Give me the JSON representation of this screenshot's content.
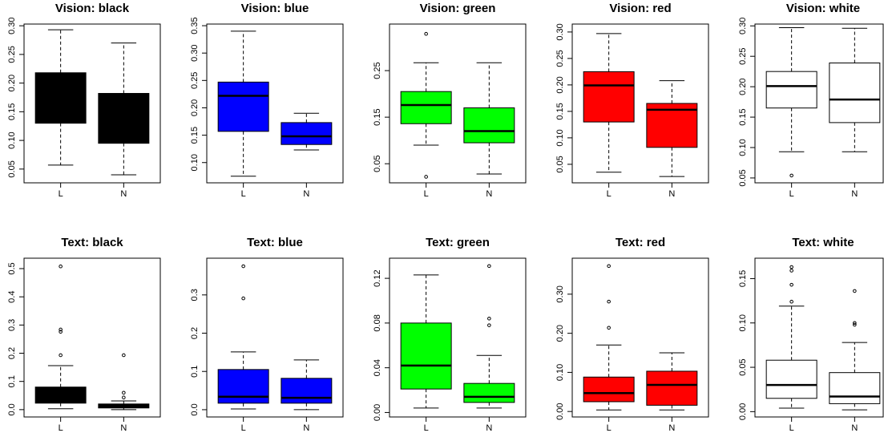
{
  "chart_data": [
    {
      "type": "box",
      "title": "Vision: black",
      "color": "#000000",
      "categories": [
        "L",
        "N"
      ],
      "ylim": [
        0.026,
        0.303
      ],
      "yticks": [
        0.05,
        {
          "value": 0.1,
          "label": "0.10"
        },
        0.15,
        {
          "value": 0.2,
          "label": "0.20"
        },
        0.25,
        {
          "value": 0.3,
          "label": "0.30"
        }
      ],
      "boxes": [
        {
          "min": 0.057,
          "q1": 0.13,
          "median": 0.17,
          "q3": 0.218,
          "max": 0.293,
          "outliers": []
        },
        {
          "min": 0.04,
          "q1": 0.095,
          "median": 0.14,
          "q3": 0.182,
          "max": 0.27,
          "outliers": []
        }
      ]
    },
    {
      "type": "box",
      "title": "Vision: blue",
      "color": "#0000ff",
      "categories": [
        "L",
        "N"
      ],
      "ylim": [
        0.063,
        0.353
      ],
      "yticks": [
        {
          "value": 0.1,
          "label": "0.10"
        },
        0.15,
        {
          "value": 0.2,
          "label": "0.20"
        },
        0.25,
        {
          "value": 0.3,
          "label": "0.30"
        },
        0.35
      ],
      "boxes": [
        {
          "min": 0.075,
          "q1": 0.157,
          "median": 0.222,
          "q3": 0.247,
          "max": 0.34,
          "outliers": []
        },
        {
          "min": 0.123,
          "q1": 0.133,
          "median": 0.148,
          "q3": 0.173,
          "max": 0.19,
          "outliers": []
        }
      ]
    },
    {
      "type": "box",
      "title": "Vision: green",
      "color": "#00ff00",
      "categories": [
        "L",
        "N"
      ],
      "ylim": [
        0.009,
        0.35
      ],
      "yticks": [
        0.05,
        0.15,
        0.25
      ],
      "boxes": [
        {
          "min": 0.09,
          "q1": 0.136,
          "median": 0.176,
          "q3": 0.205,
          "max": 0.267,
          "outliers": [
            0.329,
            0.022
          ]
        },
        {
          "min": 0.028,
          "q1": 0.095,
          "median": 0.12,
          "q3": 0.17,
          "max": 0.267,
          "outliers": []
        }
      ]
    },
    {
      "type": "box",
      "title": "Vision: red",
      "color": "#ff0000",
      "categories": [
        "L",
        "N"
      ],
      "ylim": [
        0.015,
        0.315
      ],
      "yticks": [
        0.05,
        {
          "value": 0.1,
          "label": "0.10"
        },
        0.15,
        {
          "value": 0.2,
          "label": "0.20"
        },
        0.25,
        {
          "value": 0.3,
          "label": "0.30"
        }
      ],
      "boxes": [
        {
          "min": 0.035,
          "q1": 0.13,
          "median": 0.199,
          "q3": 0.225,
          "max": 0.297,
          "outliers": []
        },
        {
          "min": 0.027,
          "q1": 0.082,
          "median": 0.153,
          "q3": 0.165,
          "max": 0.208,
          "outliers": []
        }
      ]
    },
    {
      "type": "box",
      "title": "Vision: white",
      "color": "#ffffff",
      "categories": [
        "L",
        "N"
      ],
      "ylim": [
        0.042,
        0.303
      ],
      "yticks": [
        0.05,
        {
          "value": 0.1,
          "label": "0.10"
        },
        0.15,
        {
          "value": 0.2,
          "label": "0.20"
        },
        0.25,
        {
          "value": 0.3,
          "label": "0.30"
        }
      ],
      "boxes": [
        {
          "min": 0.093,
          "q1": 0.165,
          "median": 0.201,
          "q3": 0.225,
          "max": 0.297,
          "outliers": [
            0.054
          ]
        },
        {
          "min": 0.093,
          "q1": 0.141,
          "median": 0.179,
          "q3": 0.239,
          "max": 0.296,
          "outliers": []
        }
      ]
    },
    {
      "type": "box",
      "title": "Text: black",
      "color": "#000000",
      "categories": [
        "L",
        "N"
      ],
      "ylim": [
        -0.026,
        0.537
      ],
      "yticks": [
        {
          "value": 0,
          "label": "0.0"
        },
        0.1,
        0.2,
        0.3,
        0.4,
        0.5
      ],
      "boxes": [
        {
          "min": 0.003,
          "q1": 0.023,
          "median": 0.04,
          "q3": 0.08,
          "max": 0.156,
          "outliers": [
            0.508,
            0.284,
            0.276,
            0.193
          ]
        },
        {
          "min": 0,
          "q1": 0.006,
          "median": 0.01,
          "q3": 0.02,
          "max": 0.031,
          "outliers": [
            0.193,
            0.06,
            0.043
          ]
        }
      ]
    },
    {
      "type": "box",
      "title": "Text: blue",
      "color": "#0000ff",
      "categories": [
        "L",
        "N"
      ],
      "ylim": [
        -0.019,
        0.396
      ],
      "yticks": [
        {
          "value": 0,
          "label": "0.0"
        },
        0.1,
        0.2,
        0.3
      ],
      "boxes": [
        {
          "min": 0.002,
          "q1": 0.017,
          "median": 0.034,
          "q3": 0.105,
          "max": 0.151,
          "outliers": [
            0.375,
            0.291
          ]
        },
        {
          "min": 0,
          "q1": 0.017,
          "median": 0.031,
          "q3": 0.082,
          "max": 0.13,
          "outliers": []
        }
      ]
    },
    {
      "type": "box",
      "title": "Text: green",
      "color": "#00ff00",
      "categories": [
        "L",
        "N"
      ],
      "ylim": [
        -0.004,
        0.138
      ],
      "yticks": [
        {
          "value": 0,
          "label": "0.00"
        },
        0.04,
        0.08,
        0.12
      ],
      "boxes": [
        {
          "min": 0.004,
          "q1": 0.021,
          "median": 0.042,
          "q3": 0.08,
          "max": 0.123,
          "outliers": []
        },
        {
          "min": 0.004,
          "q1": 0.009,
          "median": 0.014,
          "q3": 0.026,
          "max": 0.051,
          "outliers": [
            0.131,
            0.084,
            0.078
          ]
        }
      ]
    },
    {
      "type": "box",
      "title": "Text: red",
      "color": "#ff0000",
      "categories": [
        "L",
        "N"
      ],
      "ylim": [
        -0.014,
        0.392
      ],
      "yticks": [
        {
          "value": 0,
          "label": "0.00"
        },
        {
          "value": 0.1,
          "label": "0.10"
        },
        {
          "value": 0.2,
          "label": "0.20"
        },
        {
          "value": 0.3,
          "label": "0.30"
        }
      ],
      "boxes": [
        {
          "min": 0.004,
          "q1": 0.025,
          "median": 0.047,
          "q3": 0.088,
          "max": 0.17,
          "outliers": [
            0.372,
            0.281,
            0.214
          ]
        },
        {
          "min": 0.004,
          "q1": 0.016,
          "median": 0.068,
          "q3": 0.103,
          "max": 0.15,
          "outliers": []
        }
      ]
    },
    {
      "type": "box",
      "title": "Text: white",
      "color": "#ffffff",
      "categories": [
        "L",
        "N"
      ],
      "ylim": [
        -0.006,
        0.173
      ],
      "yticks": [
        {
          "value": 0,
          "label": "0.00"
        },
        0.05,
        {
          "value": 0.1,
          "label": "0.10"
        },
        0.15
      ],
      "boxes": [
        {
          "min": 0.004,
          "q1": 0.015,
          "median": 0.03,
          "q3": 0.058,
          "max": 0.119,
          "outliers": [
            0.163,
            0.159,
            0.143,
            0.124
          ]
        },
        {
          "min": 0.002,
          "q1": 0.009,
          "median": 0.017,
          "q3": 0.044,
          "max": 0.078,
          "outliers": [
            0.136,
            0.1,
            0.098
          ]
        }
      ]
    }
  ]
}
